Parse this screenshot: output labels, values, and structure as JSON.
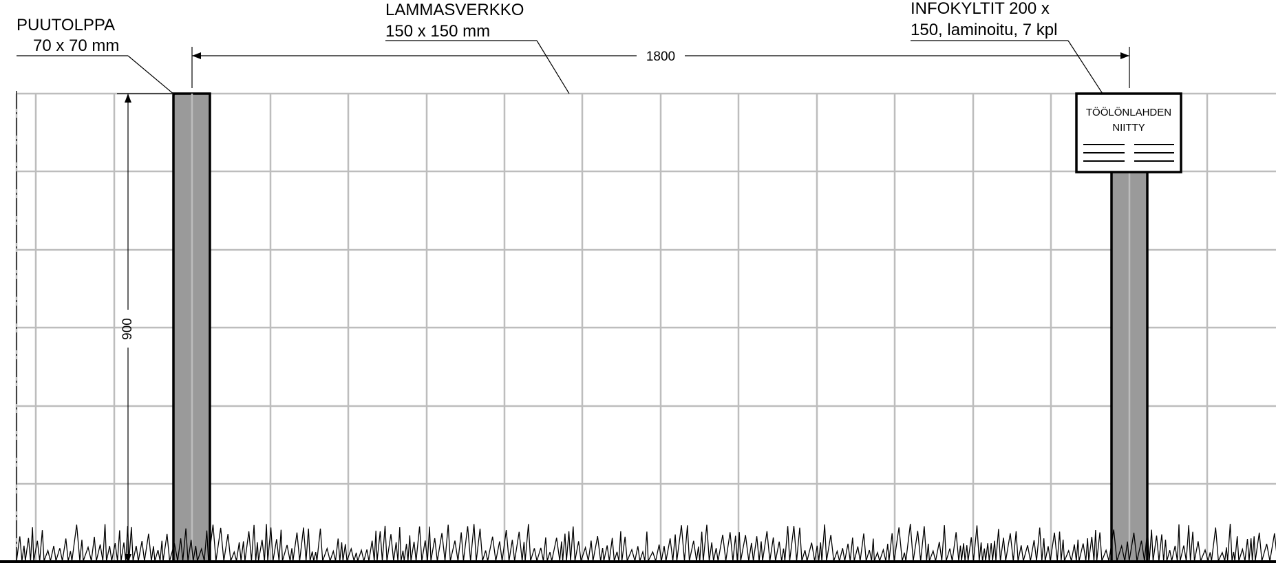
{
  "labels": {
    "post": {
      "line1": "PUUTOLPPA",
      "line2": "70 x 70 mm"
    },
    "mesh": {
      "line1": "LAMMASVERKKO",
      "line2": "150 x 150 mm"
    },
    "signs": {
      "line1": "INFOKYLTIT 200 x",
      "line2": "150, laminoitu, 7 kpl"
    }
  },
  "dimensions": {
    "post_spacing": "1800",
    "fence_height": "900"
  },
  "sign": {
    "line1": "TÖÖLÖNLAHDEN",
    "line2": "NIITTY"
  },
  "colors": {
    "mesh": "#bdbdbd",
    "post_fill": "#9a9a9a",
    "outline": "#000000"
  }
}
